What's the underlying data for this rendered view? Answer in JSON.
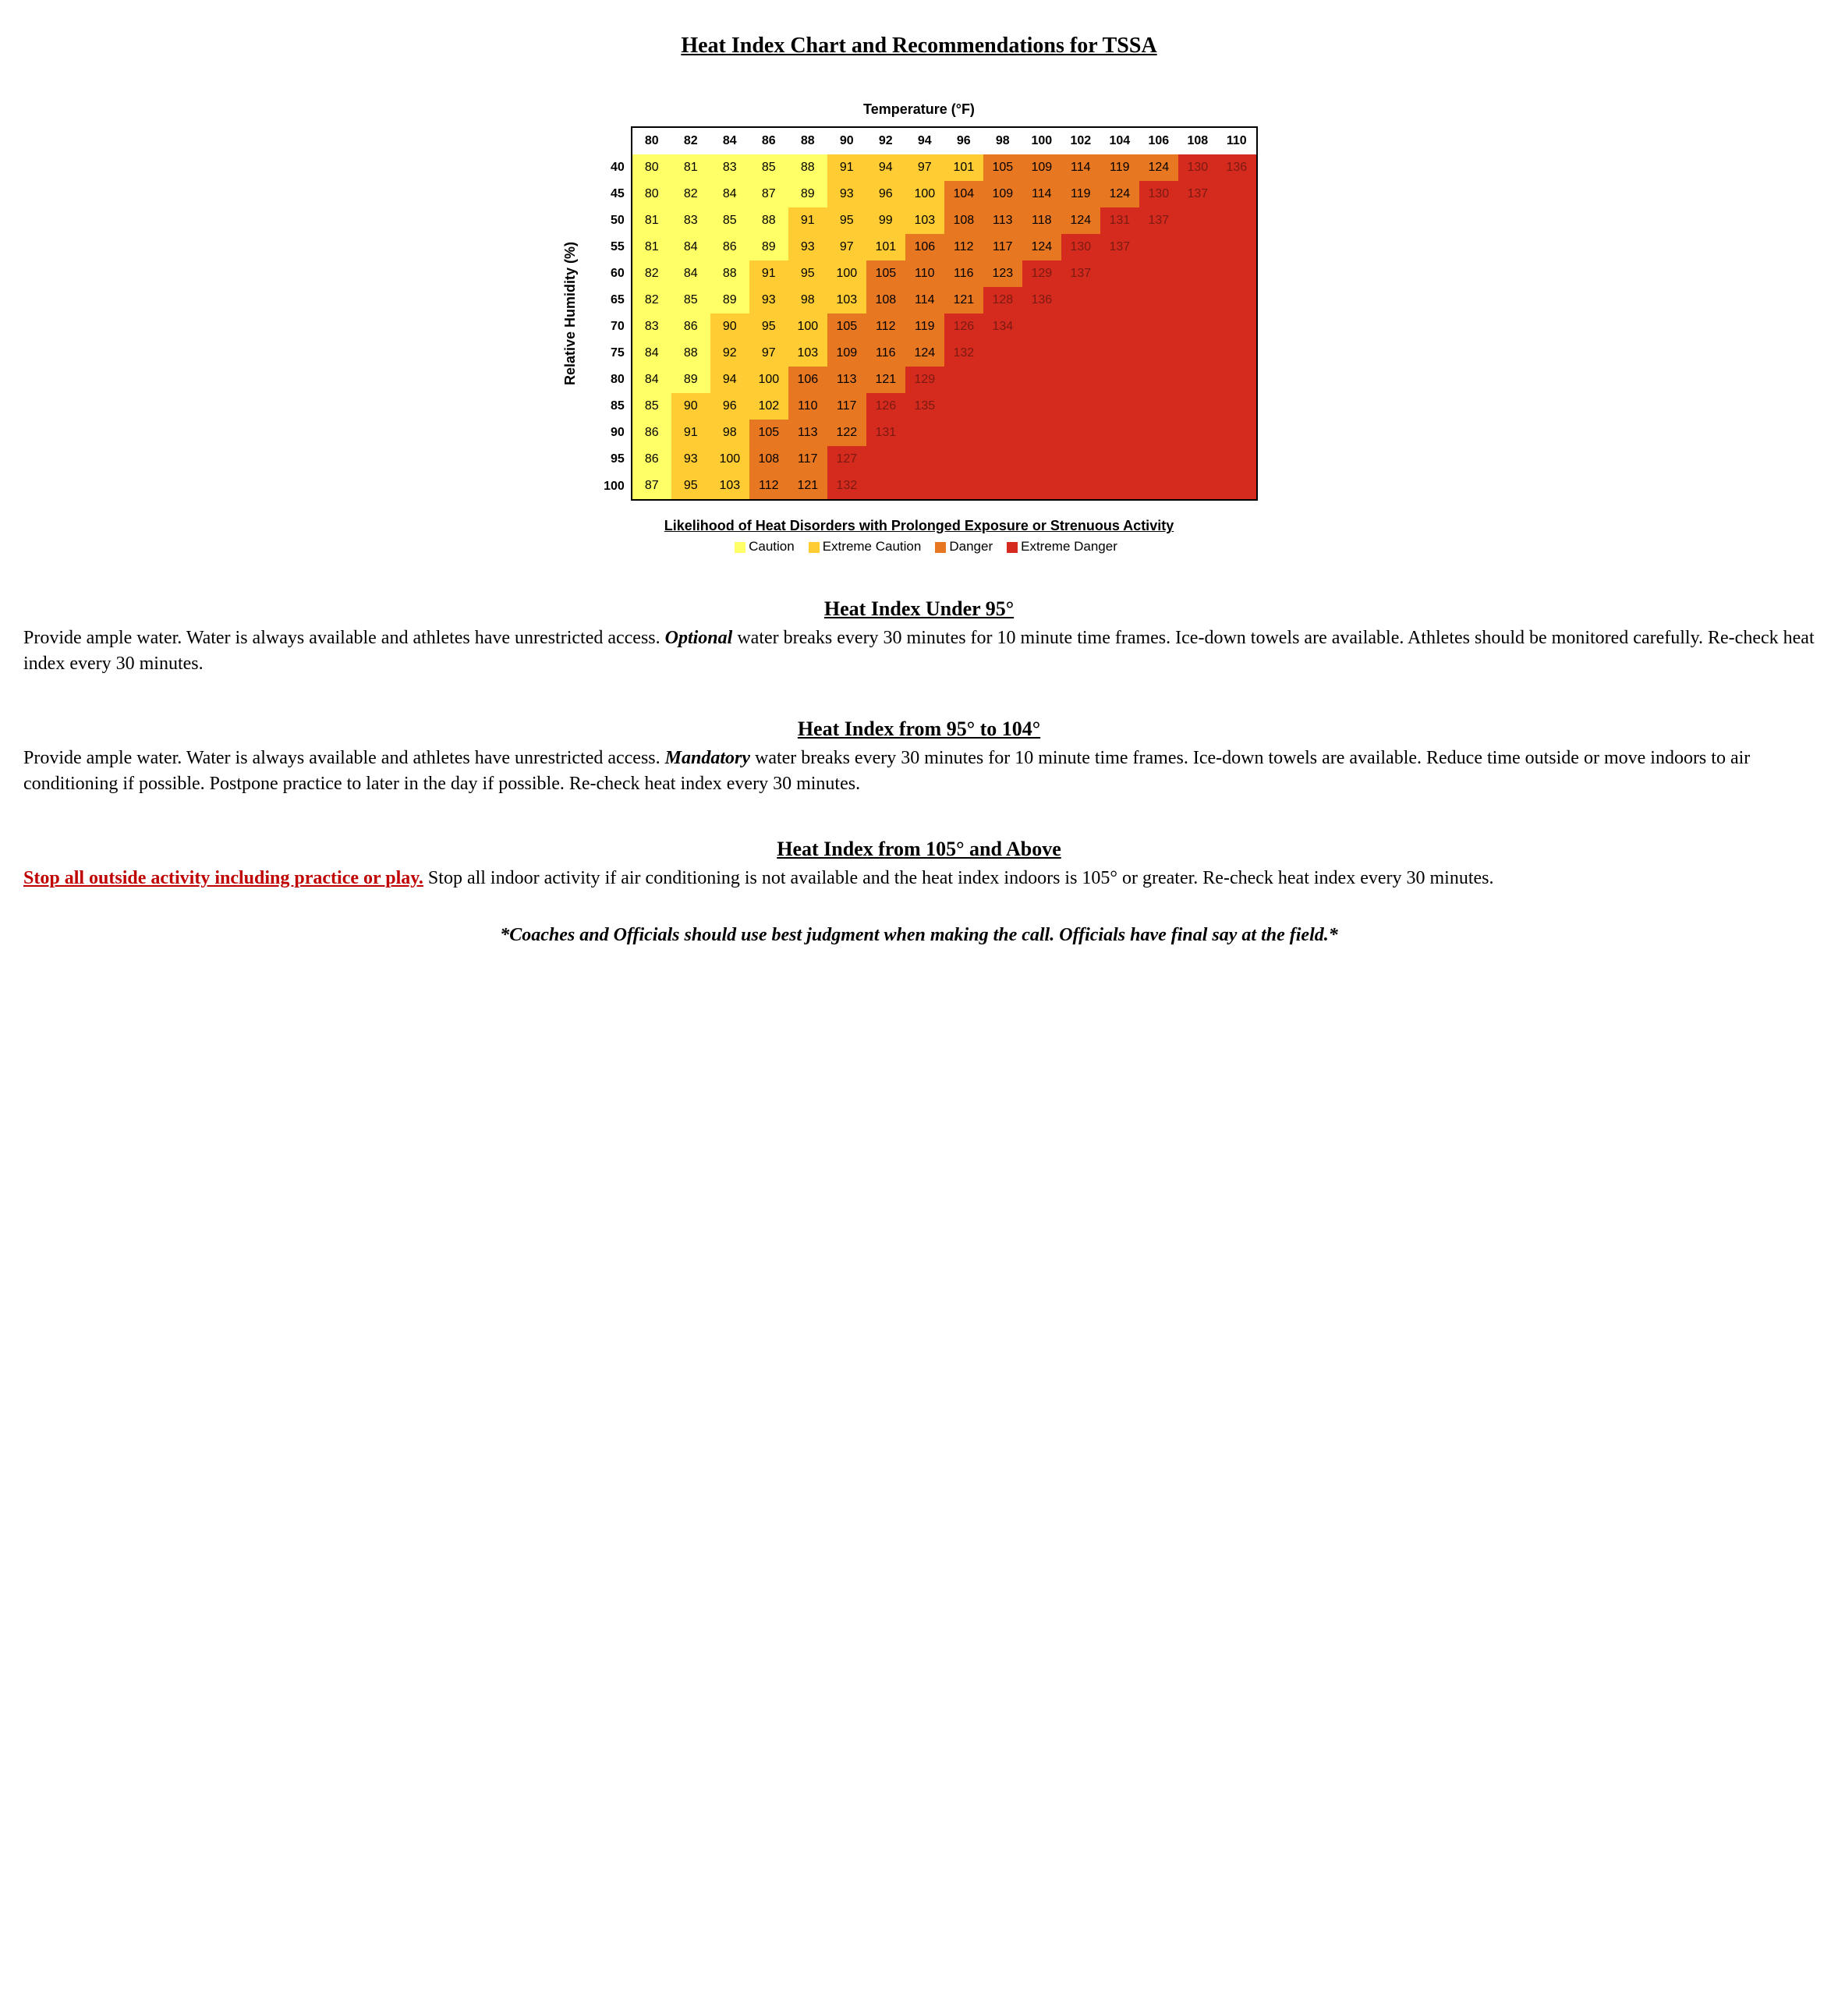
{
  "title": "Heat Index Chart and Recommendations for TSSA",
  "chart": {
    "x_axis_label": "Temperature (°F)",
    "y_axis_label": "Relative Humidity (%)",
    "temperatures": [
      80,
      82,
      84,
      86,
      88,
      90,
      92,
      94,
      96,
      98,
      100,
      102,
      104,
      106,
      108,
      110
    ],
    "humidities": [
      40,
      45,
      50,
      55,
      60,
      65,
      70,
      75,
      80,
      85,
      90,
      95,
      100
    ],
    "colors": {
      "caution": "#ffff66",
      "extreme_caution": "#ffcc33",
      "danger": "#e87722",
      "extreme_danger": "#d52b1e",
      "extreme_text": "#7a1a12"
    },
    "rows": [
      {
        "h": 40,
        "cells": [
          {
            "v": 80,
            "z": "c"
          },
          {
            "v": 81,
            "z": "c"
          },
          {
            "v": 83,
            "z": "c"
          },
          {
            "v": 85,
            "z": "c"
          },
          {
            "v": 88,
            "z": "c"
          },
          {
            "v": 91,
            "z": "e"
          },
          {
            "v": 94,
            "z": "e"
          },
          {
            "v": 97,
            "z": "e"
          },
          {
            "v": 101,
            "z": "e"
          },
          {
            "v": 105,
            "z": "d"
          },
          {
            "v": 109,
            "z": "d"
          },
          {
            "v": 114,
            "z": "d"
          },
          {
            "v": 119,
            "z": "d"
          },
          {
            "v": 124,
            "z": "d"
          },
          {
            "v": 130,
            "z": "x"
          },
          {
            "v": 136,
            "z": "x"
          }
        ]
      },
      {
        "h": 45,
        "cells": [
          {
            "v": 80,
            "z": "c"
          },
          {
            "v": 82,
            "z": "c"
          },
          {
            "v": 84,
            "z": "c"
          },
          {
            "v": 87,
            "z": "c"
          },
          {
            "v": 89,
            "z": "c"
          },
          {
            "v": 93,
            "z": "e"
          },
          {
            "v": 96,
            "z": "e"
          },
          {
            "v": 100,
            "z": "e"
          },
          {
            "v": 104,
            "z": "d"
          },
          {
            "v": 109,
            "z": "d"
          },
          {
            "v": 114,
            "z": "d"
          },
          {
            "v": 119,
            "z": "d"
          },
          {
            "v": 124,
            "z": "d"
          },
          {
            "v": 130,
            "z": "x"
          },
          {
            "v": 137,
            "z": "x"
          },
          {
            "v": "",
            "z": "x"
          }
        ]
      },
      {
        "h": 50,
        "cells": [
          {
            "v": 81,
            "z": "c"
          },
          {
            "v": 83,
            "z": "c"
          },
          {
            "v": 85,
            "z": "c"
          },
          {
            "v": 88,
            "z": "c"
          },
          {
            "v": 91,
            "z": "e"
          },
          {
            "v": 95,
            "z": "e"
          },
          {
            "v": 99,
            "z": "e"
          },
          {
            "v": 103,
            "z": "e"
          },
          {
            "v": 108,
            "z": "d"
          },
          {
            "v": 113,
            "z": "d"
          },
          {
            "v": 118,
            "z": "d"
          },
          {
            "v": 124,
            "z": "d"
          },
          {
            "v": 131,
            "z": "x"
          },
          {
            "v": 137,
            "z": "x"
          },
          {
            "v": "",
            "z": "x"
          },
          {
            "v": "",
            "z": "x"
          }
        ]
      },
      {
        "h": 55,
        "cells": [
          {
            "v": 81,
            "z": "c"
          },
          {
            "v": 84,
            "z": "c"
          },
          {
            "v": 86,
            "z": "c"
          },
          {
            "v": 89,
            "z": "c"
          },
          {
            "v": 93,
            "z": "e"
          },
          {
            "v": 97,
            "z": "e"
          },
          {
            "v": 101,
            "z": "e"
          },
          {
            "v": 106,
            "z": "d"
          },
          {
            "v": 112,
            "z": "d"
          },
          {
            "v": 117,
            "z": "d"
          },
          {
            "v": 124,
            "z": "d"
          },
          {
            "v": 130,
            "z": "x"
          },
          {
            "v": 137,
            "z": "x"
          },
          {
            "v": "",
            "z": "x"
          },
          {
            "v": "",
            "z": "x"
          },
          {
            "v": "",
            "z": "x"
          }
        ]
      },
      {
        "h": 60,
        "cells": [
          {
            "v": 82,
            "z": "c"
          },
          {
            "v": 84,
            "z": "c"
          },
          {
            "v": 88,
            "z": "c"
          },
          {
            "v": 91,
            "z": "e"
          },
          {
            "v": 95,
            "z": "e"
          },
          {
            "v": 100,
            "z": "e"
          },
          {
            "v": 105,
            "z": "d"
          },
          {
            "v": 110,
            "z": "d"
          },
          {
            "v": 116,
            "z": "d"
          },
          {
            "v": 123,
            "z": "d"
          },
          {
            "v": 129,
            "z": "x"
          },
          {
            "v": 137,
            "z": "x"
          },
          {
            "v": "",
            "z": "x"
          },
          {
            "v": "",
            "z": "x"
          },
          {
            "v": "",
            "z": "x"
          },
          {
            "v": "",
            "z": "x"
          }
        ]
      },
      {
        "h": 65,
        "cells": [
          {
            "v": 82,
            "z": "c"
          },
          {
            "v": 85,
            "z": "c"
          },
          {
            "v": 89,
            "z": "c"
          },
          {
            "v": 93,
            "z": "e"
          },
          {
            "v": 98,
            "z": "e"
          },
          {
            "v": 103,
            "z": "e"
          },
          {
            "v": 108,
            "z": "d"
          },
          {
            "v": 114,
            "z": "d"
          },
          {
            "v": 121,
            "z": "d"
          },
          {
            "v": 128,
            "z": "x"
          },
          {
            "v": 136,
            "z": "x"
          },
          {
            "v": "",
            "z": "x"
          },
          {
            "v": "",
            "z": "x"
          },
          {
            "v": "",
            "z": "x"
          },
          {
            "v": "",
            "z": "x"
          },
          {
            "v": "",
            "z": "x"
          }
        ]
      },
      {
        "h": 70,
        "cells": [
          {
            "v": 83,
            "z": "c"
          },
          {
            "v": 86,
            "z": "c"
          },
          {
            "v": 90,
            "z": "e"
          },
          {
            "v": 95,
            "z": "e"
          },
          {
            "v": 100,
            "z": "e"
          },
          {
            "v": 105,
            "z": "d"
          },
          {
            "v": 112,
            "z": "d"
          },
          {
            "v": 119,
            "z": "d"
          },
          {
            "v": 126,
            "z": "x"
          },
          {
            "v": 134,
            "z": "x"
          },
          {
            "v": "",
            "z": "x"
          },
          {
            "v": "",
            "z": "x"
          },
          {
            "v": "",
            "z": "x"
          },
          {
            "v": "",
            "z": "x"
          },
          {
            "v": "",
            "z": "x"
          },
          {
            "v": "",
            "z": "x"
          }
        ]
      },
      {
        "h": 75,
        "cells": [
          {
            "v": 84,
            "z": "c"
          },
          {
            "v": 88,
            "z": "c"
          },
          {
            "v": 92,
            "z": "e"
          },
          {
            "v": 97,
            "z": "e"
          },
          {
            "v": 103,
            "z": "e"
          },
          {
            "v": 109,
            "z": "d"
          },
          {
            "v": 116,
            "z": "d"
          },
          {
            "v": 124,
            "z": "d"
          },
          {
            "v": 132,
            "z": "x"
          },
          {
            "v": "",
            "z": "x"
          },
          {
            "v": "",
            "z": "x"
          },
          {
            "v": "",
            "z": "x"
          },
          {
            "v": "",
            "z": "x"
          },
          {
            "v": "",
            "z": "x"
          },
          {
            "v": "",
            "z": "x"
          },
          {
            "v": "",
            "z": "x"
          }
        ]
      },
      {
        "h": 80,
        "cells": [
          {
            "v": 84,
            "z": "c"
          },
          {
            "v": 89,
            "z": "c"
          },
          {
            "v": 94,
            "z": "e"
          },
          {
            "v": 100,
            "z": "e"
          },
          {
            "v": 106,
            "z": "d"
          },
          {
            "v": 113,
            "z": "d"
          },
          {
            "v": 121,
            "z": "d"
          },
          {
            "v": 129,
            "z": "x"
          },
          {
            "v": "",
            "z": "x"
          },
          {
            "v": "",
            "z": "x"
          },
          {
            "v": "",
            "z": "x"
          },
          {
            "v": "",
            "z": "x"
          },
          {
            "v": "",
            "z": "x"
          },
          {
            "v": "",
            "z": "x"
          },
          {
            "v": "",
            "z": "x"
          },
          {
            "v": "",
            "z": "x"
          }
        ]
      },
      {
        "h": 85,
        "cells": [
          {
            "v": 85,
            "z": "c"
          },
          {
            "v": 90,
            "z": "e"
          },
          {
            "v": 96,
            "z": "e"
          },
          {
            "v": 102,
            "z": "e"
          },
          {
            "v": 110,
            "z": "d"
          },
          {
            "v": 117,
            "z": "d"
          },
          {
            "v": 126,
            "z": "x"
          },
          {
            "v": 135,
            "z": "x"
          },
          {
            "v": "",
            "z": "x"
          },
          {
            "v": "",
            "z": "x"
          },
          {
            "v": "",
            "z": "x"
          },
          {
            "v": "",
            "z": "x"
          },
          {
            "v": "",
            "z": "x"
          },
          {
            "v": "",
            "z": "x"
          },
          {
            "v": "",
            "z": "x"
          },
          {
            "v": "",
            "z": "x"
          }
        ]
      },
      {
        "h": 90,
        "cells": [
          {
            "v": 86,
            "z": "c"
          },
          {
            "v": 91,
            "z": "e"
          },
          {
            "v": 98,
            "z": "e"
          },
          {
            "v": 105,
            "z": "d"
          },
          {
            "v": 113,
            "z": "d"
          },
          {
            "v": 122,
            "z": "d"
          },
          {
            "v": 131,
            "z": "x"
          },
          {
            "v": "",
            "z": "x"
          },
          {
            "v": "",
            "z": "x"
          },
          {
            "v": "",
            "z": "x"
          },
          {
            "v": "",
            "z": "x"
          },
          {
            "v": "",
            "z": "x"
          },
          {
            "v": "",
            "z": "x"
          },
          {
            "v": "",
            "z": "x"
          },
          {
            "v": "",
            "z": "x"
          },
          {
            "v": "",
            "z": "x"
          }
        ]
      },
      {
        "h": 95,
        "cells": [
          {
            "v": 86,
            "z": "c"
          },
          {
            "v": 93,
            "z": "e"
          },
          {
            "v": 100,
            "z": "e"
          },
          {
            "v": 108,
            "z": "d"
          },
          {
            "v": 117,
            "z": "d"
          },
          {
            "v": 127,
            "z": "x"
          },
          {
            "v": "",
            "z": "x"
          },
          {
            "v": "",
            "z": "x"
          },
          {
            "v": "",
            "z": "x"
          },
          {
            "v": "",
            "z": "x"
          },
          {
            "v": "",
            "z": "x"
          },
          {
            "v": "",
            "z": "x"
          },
          {
            "v": "",
            "z": "x"
          },
          {
            "v": "",
            "z": "x"
          },
          {
            "v": "",
            "z": "x"
          },
          {
            "v": "",
            "z": "x"
          }
        ]
      },
      {
        "h": 100,
        "cells": [
          {
            "v": 87,
            "z": "c"
          },
          {
            "v": 95,
            "z": "e"
          },
          {
            "v": 103,
            "z": "e"
          },
          {
            "v": 112,
            "z": "d"
          },
          {
            "v": 121,
            "z": "d"
          },
          {
            "v": 132,
            "z": "x"
          },
          {
            "v": "",
            "z": "x"
          },
          {
            "v": "",
            "z": "x"
          },
          {
            "v": "",
            "z": "x"
          },
          {
            "v": "",
            "z": "x"
          },
          {
            "v": "",
            "z": "x"
          },
          {
            "v": "",
            "z": "x"
          },
          {
            "v": "",
            "z": "x"
          },
          {
            "v": "",
            "z": "x"
          },
          {
            "v": "",
            "z": "x"
          },
          {
            "v": "",
            "z": "x"
          }
        ]
      }
    ]
  },
  "legend": {
    "title": "Likelihood of Heat Disorders with Prolonged Exposure or Strenuous Activity",
    "items": [
      {
        "label": "Caution",
        "color": "#ffff66"
      },
      {
        "label": "Extreme Caution",
        "color": "#ffcc33"
      },
      {
        "label": "Danger",
        "color": "#e87722"
      },
      {
        "label": "Extreme Danger",
        "color": "#d52b1e"
      }
    ]
  },
  "sections": {
    "s1": {
      "heading": "Heat Index Under 95°",
      "before": "Provide ample water. Water is always available and athletes have unrestricted access. ",
      "emph": "Optional",
      "after": " water breaks every 30 minutes for 10 minute time frames. Ice-down towels are available. Athletes should be monitored carefully. Re-check heat index every 30 minutes."
    },
    "s2": {
      "heading": "Heat Index from 95° to 104°",
      "before": "Provide ample water. Water is always available and athletes have unrestricted access. ",
      "emph": "Mandatory",
      "after": " water breaks every 30 minutes for 10 minute time frames. Ice-down towels are available. Reduce time outside or move indoors to air conditioning if possible. Postpone practice to later in the day if possible. Re-check heat index every 30 minutes."
    },
    "s3": {
      "heading": "Heat Index from 105° and Above",
      "stop": "Stop all outside activity including practice or play.",
      "after": " Stop all indoor activity if air conditioning is not available and the heat index indoors is 105° or greater. Re-check heat index every 30 minutes."
    }
  },
  "footnote": "*Coaches and Officials should use best judgment when making the call.  Officials have final say at the field.*"
}
